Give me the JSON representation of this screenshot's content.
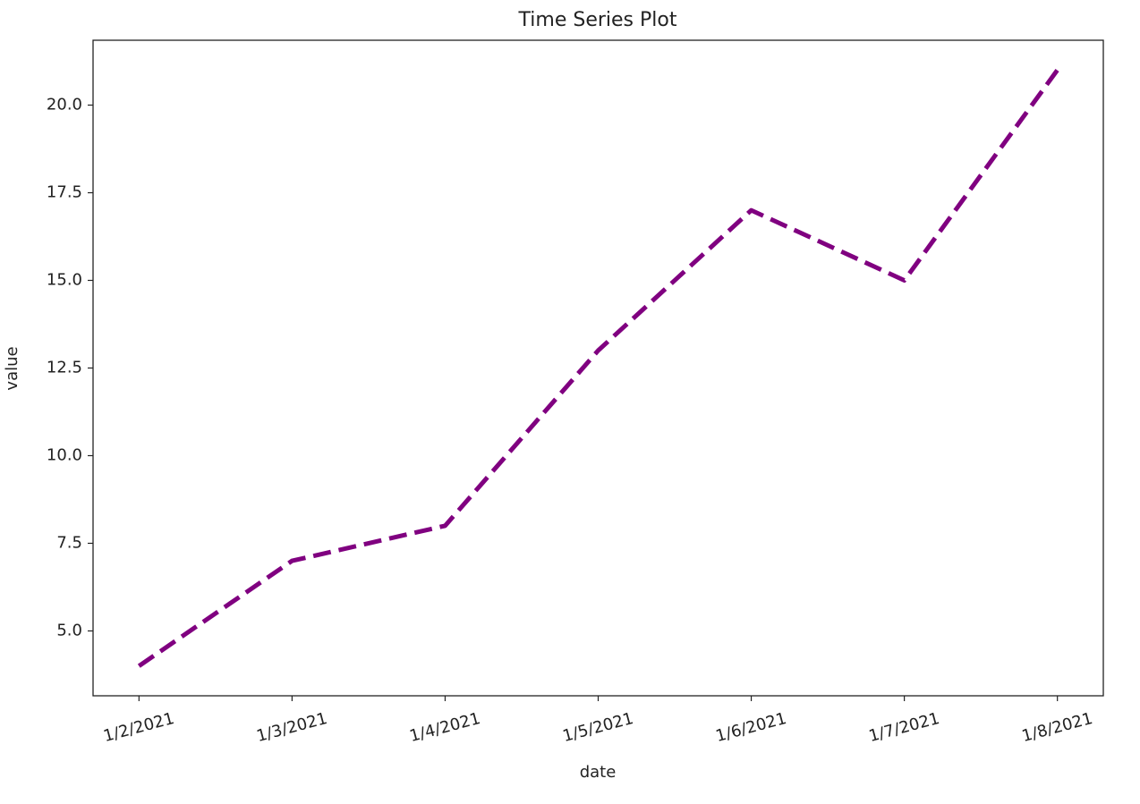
{
  "chart_data": {
    "type": "line",
    "title": "Time Series Plot",
    "x_label": "date",
    "y_label": "value",
    "categories": [
      "1/2/2021",
      "1/3/2021",
      "1/4/2021",
      "1/5/2021",
      "1/6/2021",
      "1/7/2021",
      "1/8/2021"
    ],
    "values": [
      4,
      7,
      8,
      13,
      17,
      15,
      21
    ],
    "color": "#800080",
    "line_style": "dashed",
    "ylim": [
      3.15,
      21.85
    ],
    "yticks": [
      {
        "value": 5,
        "label": "5.0"
      },
      {
        "value": 7.5,
        "label": "7.5"
      },
      {
        "value": 10,
        "label": "10.0"
      },
      {
        "value": 12.5,
        "label": "12.5"
      },
      {
        "value": 15,
        "label": "15.0"
      },
      {
        "value": 17.5,
        "label": "17.5"
      },
      {
        "value": 20,
        "label": "20.0"
      }
    ],
    "grid": false
  }
}
